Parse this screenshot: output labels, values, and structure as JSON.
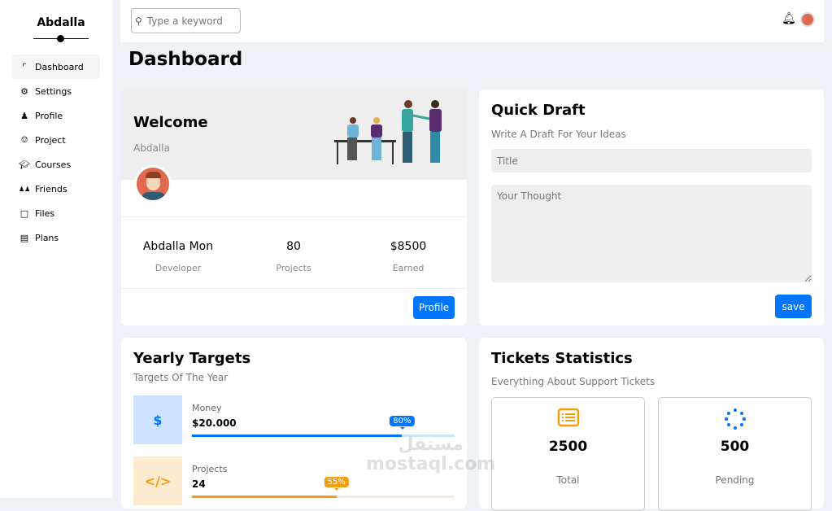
{
  "sidebar": {
    "brand": "Abdalla",
    "items": [
      {
        "label": "Dashboard",
        "icon": "chart-icon",
        "active": true
      },
      {
        "label": "Settings",
        "icon": "gear-icon"
      },
      {
        "label": "Profile",
        "icon": "user-icon"
      },
      {
        "label": "Project",
        "icon": "diagram-icon"
      },
      {
        "label": "Courses",
        "icon": "graduation-cap-icon"
      },
      {
        "label": "Friends",
        "icon": "users-icon"
      },
      {
        "label": "Files",
        "icon": "file-icon"
      },
      {
        "label": "Plans",
        "icon": "credit-card-icon"
      }
    ]
  },
  "topbar": {
    "search_placeholder": "Type a keyword"
  },
  "page_title": "Dashboard",
  "welcome": {
    "title": "Welcome",
    "subtitle": "Abdalla",
    "stats": [
      {
        "value": "Abdalla Mon",
        "label": "Developer"
      },
      {
        "value": "80",
        "label": "Projects"
      },
      {
        "value": "$8500",
        "label": "Earned"
      }
    ],
    "button": "Profile"
  },
  "quick_draft": {
    "title": "Quick Draft",
    "subtitle": "Write A Draft For Your Ideas",
    "title_placeholder": "Title",
    "thought_placeholder": "Your Thought",
    "button": "save"
  },
  "yearly_targets": {
    "title": "Yearly Targets",
    "subtitle": "Targets Of The Year",
    "items": [
      {
        "name": "Money",
        "value": "$20.000",
        "percent": 80,
        "percent_label": "80%",
        "icon": "$",
        "color": "#0075ff",
        "bg": "#cde3ff"
      },
      {
        "name": "Projects",
        "value": "24",
        "percent": 55,
        "percent_label": "55%",
        "icon": "</>",
        "color": "#f59e0b",
        "bg": "#fdebd0"
      }
    ]
  },
  "tickets": {
    "title": "Tickets Statistics",
    "subtitle": "Everything About Support Tickets",
    "items": [
      {
        "value": "2500",
        "label": "Total",
        "icon": "list-icon",
        "color": "#f59e0b"
      },
      {
        "value": "500",
        "label": "Pending",
        "icon": "spinner-icon",
        "color": "#0075ff"
      }
    ]
  },
  "watermark": {
    "arabic": "مستقل",
    "latin": "mostaql.com"
  }
}
